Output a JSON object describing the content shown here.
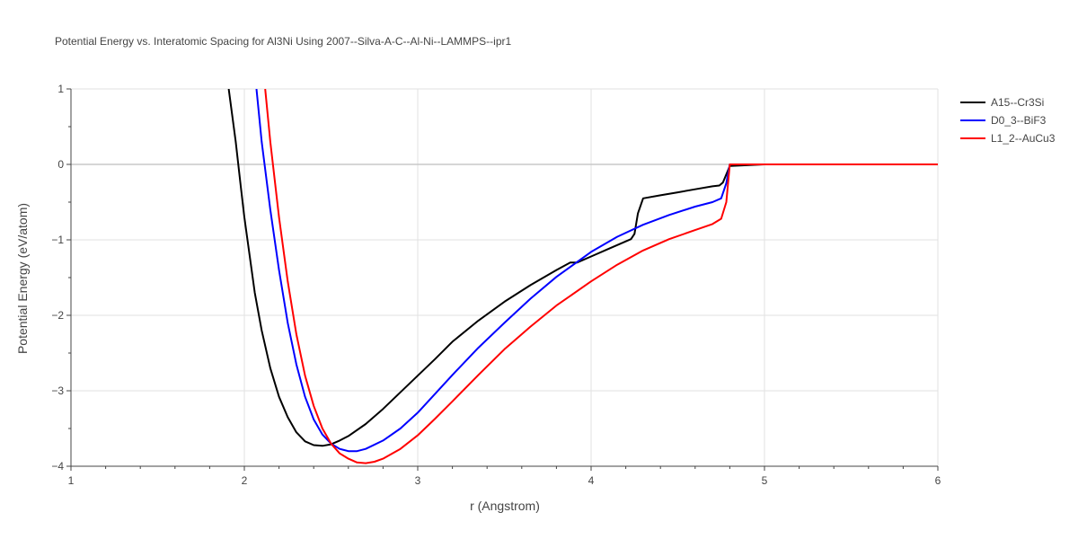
{
  "chart_data": {
    "type": "line",
    "title": "Potential Energy vs. Interatomic Spacing for Al3Ni Using 2007--Silva-A-C--Al-Ni--LAMMPS--ipr1",
    "xlabel": "r (Angstrom)",
    "ylabel": "Potential Energy (eV/atom)",
    "xlim": [
      1,
      6
    ],
    "ylim": [
      -4,
      1
    ],
    "xticks": [
      1,
      2,
      3,
      4,
      5,
      6
    ],
    "xtick_labels": [
      "1",
      "2",
      "3",
      "4",
      "5",
      "6"
    ],
    "yticks": [
      1,
      0,
      -1,
      -2,
      -3,
      -4
    ],
    "ytick_labels": [
      "1",
      "0",
      "−1",
      "−2",
      "−3",
      "−4"
    ],
    "grid": true,
    "legend_position": "top-right",
    "series": [
      {
        "name": "A15--Cr3Si",
        "color": "#000000",
        "x": [
          1.91,
          1.95,
          1.98,
          2.0,
          2.03,
          2.06,
          2.1,
          2.15,
          2.2,
          2.25,
          2.3,
          2.35,
          2.4,
          2.45,
          2.5,
          2.55,
          2.6,
          2.7,
          2.8,
          2.9,
          3.0,
          3.1,
          3.2,
          3.35,
          3.5,
          3.65,
          3.8,
          3.88,
          3.9,
          3.92,
          4.0,
          4.1,
          4.2,
          4.23,
          4.25,
          4.27,
          4.3,
          4.4,
          4.5,
          4.6,
          4.7,
          4.74,
          4.76,
          4.8,
          5.0,
          5.5,
          6.0
        ],
        "y": [
          1.0,
          0.3,
          -0.3,
          -0.7,
          -1.2,
          -1.7,
          -2.2,
          -2.7,
          -3.08,
          -3.35,
          -3.55,
          -3.67,
          -3.72,
          -3.73,
          -3.71,
          -3.66,
          -3.6,
          -3.44,
          -3.24,
          -3.02,
          -2.8,
          -2.58,
          -2.35,
          -2.07,
          -1.82,
          -1.6,
          -1.4,
          -1.3,
          -1.3,
          -1.3,
          -1.22,
          -1.12,
          -1.02,
          -0.99,
          -0.92,
          -0.65,
          -0.45,
          -0.41,
          -0.37,
          -0.33,
          -0.29,
          -0.28,
          -0.24,
          -0.02,
          0.0,
          0.0,
          0.0
        ]
      },
      {
        "name": "D0_3--BiF3",
        "color": "#0000ff",
        "x": [
          2.07,
          2.1,
          2.15,
          2.2,
          2.25,
          2.3,
          2.35,
          2.4,
          2.45,
          2.5,
          2.55,
          2.6,
          2.65,
          2.7,
          2.8,
          2.9,
          3.0,
          3.1,
          3.2,
          3.35,
          3.5,
          3.65,
          3.8,
          4.0,
          4.15,
          4.3,
          4.45,
          4.6,
          4.7,
          4.75,
          4.78,
          4.8,
          5.0,
          5.5,
          6.0
        ],
        "y": [
          1.0,
          0.3,
          -0.6,
          -1.4,
          -2.1,
          -2.65,
          -3.08,
          -3.38,
          -3.58,
          -3.7,
          -3.77,
          -3.8,
          -3.8,
          -3.77,
          -3.66,
          -3.5,
          -3.29,
          -3.04,
          -2.79,
          -2.43,
          -2.1,
          -1.78,
          -1.49,
          -1.16,
          -0.96,
          -0.8,
          -0.67,
          -0.56,
          -0.5,
          -0.45,
          -0.25,
          0.0,
          0.0,
          0.0,
          0.0
        ]
      },
      {
        "name": "L1_2--AuCu3",
        "color": "#ff0000",
        "x": [
          2.12,
          2.15,
          2.2,
          2.25,
          2.3,
          2.35,
          2.4,
          2.45,
          2.5,
          2.55,
          2.6,
          2.65,
          2.7,
          2.75,
          2.8,
          2.9,
          3.0,
          3.1,
          3.2,
          3.35,
          3.5,
          3.65,
          3.8,
          4.0,
          4.15,
          4.3,
          4.45,
          4.6,
          4.7,
          4.75,
          4.78,
          4.8,
          5.0,
          5.5,
          6.0
        ],
        "y": [
          1.0,
          0.3,
          -0.7,
          -1.55,
          -2.25,
          -2.8,
          -3.2,
          -3.5,
          -3.7,
          -3.83,
          -3.9,
          -3.95,
          -3.96,
          -3.94,
          -3.9,
          -3.77,
          -3.59,
          -3.37,
          -3.14,
          -2.79,
          -2.45,
          -2.15,
          -1.87,
          -1.55,
          -1.33,
          -1.14,
          -0.99,
          -0.87,
          -0.79,
          -0.72,
          -0.5,
          0.0,
          0.0,
          0.0,
          0.0
        ]
      }
    ]
  }
}
